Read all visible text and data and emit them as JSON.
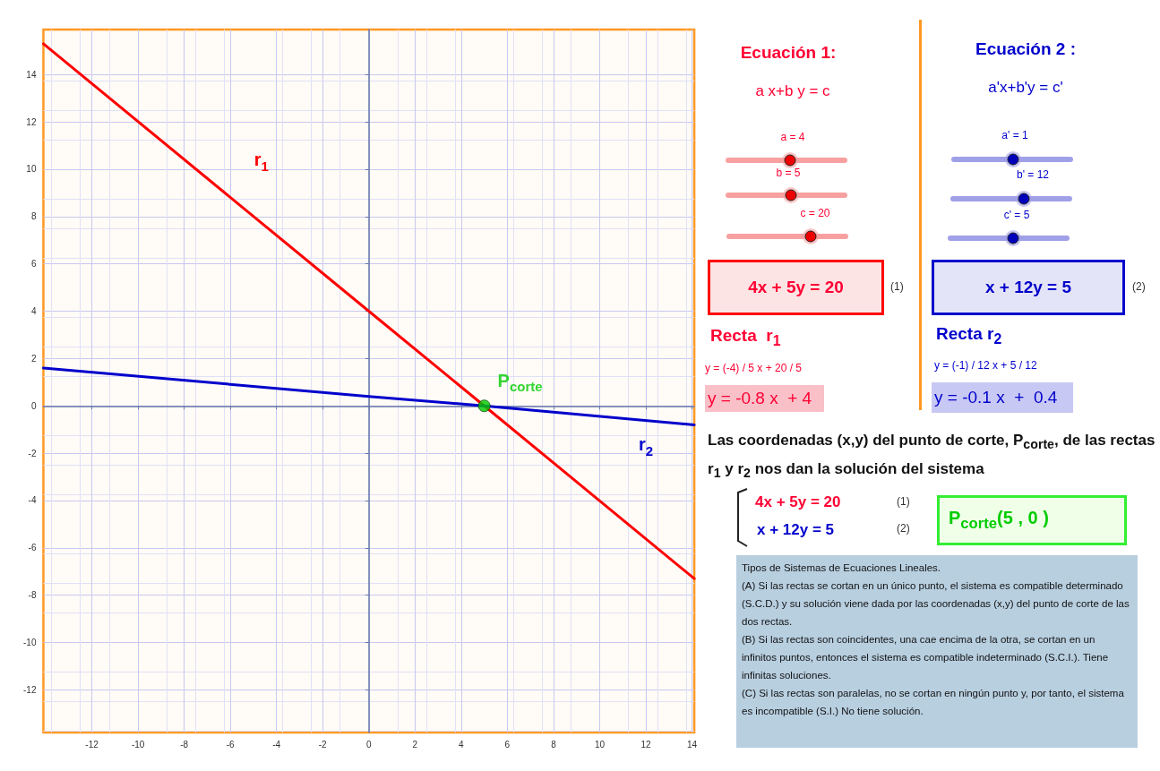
{
  "chart_data": {
    "type": "line",
    "xlim": [
      -14.1,
      14.1
    ],
    "ylim": [
      -13.8,
      15.9
    ],
    "xticks": [
      -12,
      -10,
      -8,
      -6,
      -4,
      -2,
      0,
      2,
      4,
      6,
      8,
      10,
      12,
      14
    ],
    "yticks": [
      -12,
      -10,
      -8,
      -6,
      -4,
      -2,
      0,
      2,
      4,
      6,
      8,
      10,
      12,
      14
    ],
    "grid": true,
    "marker": "none",
    "line_style": "solid",
    "series": [
      {
        "name": "r$_{1}$",
        "color": "#ff0000",
        "x": [
          -14.1,
          0,
          5,
          14.1
        ],
        "values": [
          15.3,
          4,
          0,
          -7.3
        ]
      },
      {
        "name": "r$_{2}$",
        "color": "#0000cc",
        "x": [
          -14.1,
          0,
          5,
          14.1
        ],
        "values": [
          1.6,
          0.4,
          0,
          -0.8
        ]
      },
      {
        "name": "P$_{corte}$",
        "type": "scatter",
        "marker": "circle",
        "color": "#00cc00",
        "x": [
          5
        ],
        "values": [
          0
        ]
      }
    ],
    "annotations": [
      "Ecuación 1:",
      "a x+b y = c",
      "a = 4",
      "b = 5",
      "c = 20",
      "4x + 5y = 20",
      "(1)",
      "Recta  r$_{1}$",
      "y = (-4) / 5 x + 20 / 5",
      "y = -0.8 x  + 4",
      "Ecuación 2 :",
      "a'x+b'y = c'",
      "a' = 1",
      "b' = 12",
      "c' = 5",
      "x + 12y = 5",
      "(2)",
      "Recta r$_{2}$",
      "y = (-1) / 12 x + 5 / 12",
      "y = -0.1 x  +  0.4",
      "Las coordenadas (x,y) del punto de corte, P$_{corte}$, de las rectas r$_{1}$ y r$_{2}$ nos dan la solución del sistema",
      "4x + 5y = 20",
      "(1)",
      "x + 12y = 5",
      "(2)",
      "P$_{corte}$(5 , 0 )",
      "Tipos de Sistemas de Ecuaciones Lineales.",
      "(A) Si las rectas se cortan en un único punto, el sistema es compatible determinado (S.C.D.) y su solución viene dada por las coordenadas (x,y) del punto de corte de las dos rectas.",
      "(B) Si las rectas son coincidentes, una cae encima de la otra, se cortan en un infinitos puntos, entonces el sistema es compatible indeterminado (S.C.I.). Tiene infinitas soluciones.",
      "(C) Si las rectas son paralelas, no se cortan en ningún punto y, por tanto, el sistema es incompatible (S.I.) No tiene solución."
    ]
  }
}
